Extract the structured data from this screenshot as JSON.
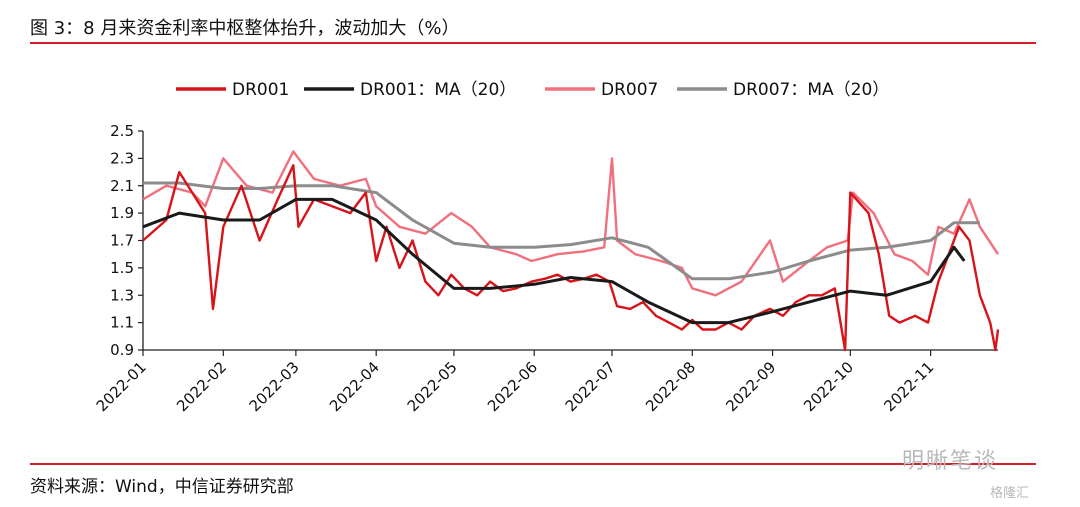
{
  "title": "图 3：8 月来资金利率中枢整体抬升，波动加大（%）",
  "source": "资料来源：Wind，中信证券研究部",
  "watermark": "明晰笔谈",
  "watermark_small": "格隆汇",
  "chart_data": {
    "type": "line",
    "title": "",
    "xlabel": "",
    "ylabel": "",
    "ylim": [
      0.9,
      2.5
    ],
    "yticks": [
      "0.9",
      "1.1",
      "1.3",
      "1.5",
      "1.7",
      "1.9",
      "2.1",
      "2.3",
      "2.5"
    ],
    "xticks": [
      "2022-01",
      "2022-02",
      "2022-03",
      "2022-04",
      "2022-05",
      "2022-06",
      "2022-07",
      "2022-08",
      "2022-09",
      "2022-10",
      "2022-11"
    ],
    "legend_position": "top",
    "series": [
      {
        "name": "DR001",
        "color": "#d7141a",
        "points": [
          [
            "2022-01-01",
            1.7
          ],
          [
            "2022-01-10",
            1.85
          ],
          [
            "2022-01-15",
            2.2
          ],
          [
            "2022-01-20",
            2.05
          ],
          [
            "2022-01-25",
            1.9
          ],
          [
            "2022-01-28",
            1.2
          ],
          [
            "2022-02-01",
            1.8
          ],
          [
            "2022-02-08",
            2.1
          ],
          [
            "2022-02-15",
            1.7
          ],
          [
            "2022-02-22",
            2.0
          ],
          [
            "2022-02-28",
            2.25
          ],
          [
            "2022-03-02",
            1.8
          ],
          [
            "2022-03-08",
            2.0
          ],
          [
            "2022-03-15",
            1.95
          ],
          [
            "2022-03-22",
            1.9
          ],
          [
            "2022-03-28",
            2.05
          ],
          [
            "2022-04-01",
            1.55
          ],
          [
            "2022-04-05",
            1.8
          ],
          [
            "2022-04-10",
            1.5
          ],
          [
            "2022-04-15",
            1.7
          ],
          [
            "2022-04-20",
            1.4
          ],
          [
            "2022-04-25",
            1.3
          ],
          [
            "2022-04-30",
            1.45
          ],
          [
            "2022-05-05",
            1.35
          ],
          [
            "2022-05-10",
            1.3
          ],
          [
            "2022-05-15",
            1.4
          ],
          [
            "2022-05-20",
            1.33
          ],
          [
            "2022-05-25",
            1.35
          ],
          [
            "2022-05-31",
            1.4
          ],
          [
            "2022-06-05",
            1.42
          ],
          [
            "2022-06-10",
            1.45
          ],
          [
            "2022-06-15",
            1.4
          ],
          [
            "2022-06-20",
            1.42
          ],
          [
            "2022-06-25",
            1.45
          ],
          [
            "2022-06-30",
            1.4
          ],
          [
            "2022-07-03",
            1.22
          ],
          [
            "2022-07-08",
            1.2
          ],
          [
            "2022-07-13",
            1.25
          ],
          [
            "2022-07-18",
            1.15
          ],
          [
            "2022-07-23",
            1.1
          ],
          [
            "2022-07-28",
            1.05
          ],
          [
            "2022-08-01",
            1.12
          ],
          [
            "2022-08-05",
            1.05
          ],
          [
            "2022-08-10",
            1.05
          ],
          [
            "2022-08-15",
            1.1
          ],
          [
            "2022-08-20",
            1.05
          ],
          [
            "2022-08-25",
            1.15
          ],
          [
            "2022-08-31",
            1.2
          ],
          [
            "2022-09-05",
            1.15
          ],
          [
            "2022-09-10",
            1.25
          ],
          [
            "2022-09-15",
            1.3
          ],
          [
            "2022-09-20",
            1.3
          ],
          [
            "2022-09-25",
            1.35
          ],
          [
            "2022-09-29",
            0.9
          ],
          [
            "2022-10-01",
            2.05
          ],
          [
            "2022-10-08",
            1.9
          ],
          [
            "2022-10-12",
            1.6
          ],
          [
            "2022-10-16",
            1.15
          ],
          [
            "2022-10-20",
            1.1
          ],
          [
            "2022-10-26",
            1.15
          ],
          [
            "2022-10-31",
            1.1
          ],
          [
            "2022-11-04",
            1.4
          ],
          [
            "2022-11-08",
            1.6
          ],
          [
            "2022-11-12",
            1.8
          ],
          [
            "2022-11-16",
            1.7
          ],
          [
            "2022-11-20",
            1.3
          ],
          [
            "2022-11-24",
            1.1
          ],
          [
            "2022-11-26",
            0.9
          ],
          [
            "2022-11-27",
            1.05
          ]
        ]
      },
      {
        "name": "DR001：MA（20）",
        "color": "#1a1a1a",
        "points": [
          [
            "2022-01-01",
            1.8
          ],
          [
            "2022-01-15",
            1.9
          ],
          [
            "2022-02-01",
            1.85
          ],
          [
            "2022-02-15",
            1.85
          ],
          [
            "2022-03-01",
            2.0
          ],
          [
            "2022-03-15",
            2.0
          ],
          [
            "2022-04-01",
            1.85
          ],
          [
            "2022-04-15",
            1.6
          ],
          [
            "2022-05-01",
            1.35
          ],
          [
            "2022-05-15",
            1.35
          ],
          [
            "2022-06-01",
            1.38
          ],
          [
            "2022-06-15",
            1.43
          ],
          [
            "2022-07-01",
            1.4
          ],
          [
            "2022-07-15",
            1.25
          ],
          [
            "2022-08-01",
            1.1
          ],
          [
            "2022-08-15",
            1.1
          ],
          [
            "2022-09-01",
            1.18
          ],
          [
            "2022-09-15",
            1.25
          ],
          [
            "2022-10-01",
            1.33
          ],
          [
            "2022-10-15",
            1.3
          ],
          [
            "2022-11-01",
            1.4
          ],
          [
            "2022-11-10",
            1.65
          ],
          [
            "2022-11-14",
            1.55
          ]
        ]
      },
      {
        "name": "DR007",
        "color": "#f0707e",
        "points": [
          [
            "2022-01-01",
            2.0
          ],
          [
            "2022-01-10",
            2.1
          ],
          [
            "2022-01-20",
            2.05
          ],
          [
            "2022-01-25",
            1.95
          ],
          [
            "2022-02-01",
            2.3
          ],
          [
            "2022-02-10",
            2.1
          ],
          [
            "2022-02-20",
            2.05
          ],
          [
            "2022-02-28",
            2.35
          ],
          [
            "2022-03-08",
            2.15
          ],
          [
            "2022-03-18",
            2.1
          ],
          [
            "2022-03-28",
            2.15
          ],
          [
            "2022-04-01",
            1.95
          ],
          [
            "2022-04-10",
            1.8
          ],
          [
            "2022-04-20",
            1.75
          ],
          [
            "2022-04-30",
            1.9
          ],
          [
            "2022-05-08",
            1.8
          ],
          [
            "2022-05-15",
            1.65
          ],
          [
            "2022-05-25",
            1.6
          ],
          [
            "2022-05-31",
            1.55
          ],
          [
            "2022-06-10",
            1.6
          ],
          [
            "2022-06-20",
            1.62
          ],
          [
            "2022-06-28",
            1.65
          ],
          [
            "2022-07-01",
            2.3
          ],
          [
            "2022-07-03",
            1.7
          ],
          [
            "2022-07-10",
            1.6
          ],
          [
            "2022-07-20",
            1.55
          ],
          [
            "2022-07-28",
            1.5
          ],
          [
            "2022-08-01",
            1.35
          ],
          [
            "2022-08-10",
            1.3
          ],
          [
            "2022-08-20",
            1.4
          ],
          [
            "2022-08-31",
            1.7
          ],
          [
            "2022-09-05",
            1.4
          ],
          [
            "2022-09-15",
            1.55
          ],
          [
            "2022-09-22",
            1.65
          ],
          [
            "2022-09-30",
            1.7
          ],
          [
            "2022-10-02",
            2.05
          ],
          [
            "2022-10-10",
            1.9
          ],
          [
            "2022-10-18",
            1.6
          ],
          [
            "2022-10-25",
            1.55
          ],
          [
            "2022-10-31",
            1.45
          ],
          [
            "2022-11-04",
            1.8
          ],
          [
            "2022-11-10",
            1.75
          ],
          [
            "2022-11-16",
            2.0
          ],
          [
            "2022-11-20",
            1.8
          ],
          [
            "2022-11-27",
            1.6
          ]
        ]
      },
      {
        "name": "DR007：MA（20）",
        "color": "#8c8c8c",
        "points": [
          [
            "2022-01-01",
            2.12
          ],
          [
            "2022-01-15",
            2.12
          ],
          [
            "2022-02-01",
            2.08
          ],
          [
            "2022-02-15",
            2.08
          ],
          [
            "2022-03-01",
            2.1
          ],
          [
            "2022-03-15",
            2.1
          ],
          [
            "2022-04-01",
            2.05
          ],
          [
            "2022-04-15",
            1.85
          ],
          [
            "2022-05-01",
            1.68
          ],
          [
            "2022-05-15",
            1.65
          ],
          [
            "2022-06-01",
            1.65
          ],
          [
            "2022-06-15",
            1.67
          ],
          [
            "2022-07-01",
            1.72
          ],
          [
            "2022-07-15",
            1.65
          ],
          [
            "2022-08-01",
            1.42
          ],
          [
            "2022-08-15",
            1.42
          ],
          [
            "2022-09-01",
            1.47
          ],
          [
            "2022-09-15",
            1.55
          ],
          [
            "2022-10-01",
            1.63
          ],
          [
            "2022-10-15",
            1.65
          ],
          [
            "2022-11-01",
            1.7
          ],
          [
            "2022-11-10",
            1.83
          ],
          [
            "2022-11-20",
            1.83
          ]
        ]
      }
    ]
  }
}
